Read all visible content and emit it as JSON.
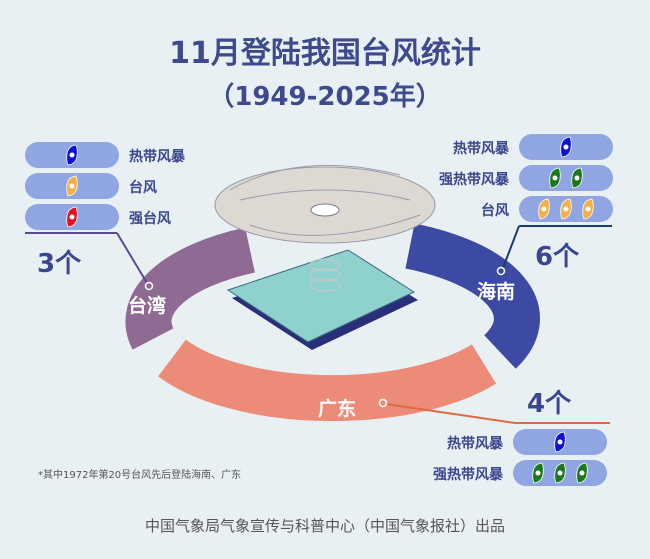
{
  "title": "11月登陆我国台风统计",
  "subtitle": "（1949-2025年）",
  "colors": {
    "tropical_storm": "#1010d8",
    "severe_tropical_storm": "#1a7a1a",
    "typhoon": "#f5b04a",
    "severe_typhoon": "#e81020",
    "taiwan": "#8f6a93",
    "hainan": "#3c4aa3",
    "guangdong": "#ec8c78"
  },
  "taiwan": {
    "name": "台湾",
    "count": "3个",
    "items": [
      {
        "label": "热带风暴",
        "icon": "tropical-storm-icon",
        "n": 1
      },
      {
        "label": "台风",
        "icon": "typhoon-icon",
        "n": 1
      },
      {
        "label": "强台风",
        "icon": "severe-typhoon-icon",
        "n": 1
      }
    ]
  },
  "hainan": {
    "name": "海南",
    "count": "6个",
    "items": [
      {
        "label": "热带风暴",
        "icon": "tropical-storm-icon",
        "n": 1
      },
      {
        "label": "强热带风暴",
        "icon": "severe-tropical-storm-icon",
        "n": 2
      },
      {
        "label": "台风",
        "icon": "typhoon-icon",
        "n": 3
      }
    ]
  },
  "guangdong": {
    "name": "广东",
    "count": "4个",
    "items": [
      {
        "label": "热带风暴",
        "icon": "tropical-storm-icon",
        "n": 1
      },
      {
        "label": "强热带风暴",
        "icon": "severe-tropical-storm-icon",
        "n": 3
      }
    ]
  },
  "footnote": "*其中1972年第20号台风先后登陆海南、广东",
  "credit": "中国气象局气象宣传与科普中心（中国气象报社）出品"
}
